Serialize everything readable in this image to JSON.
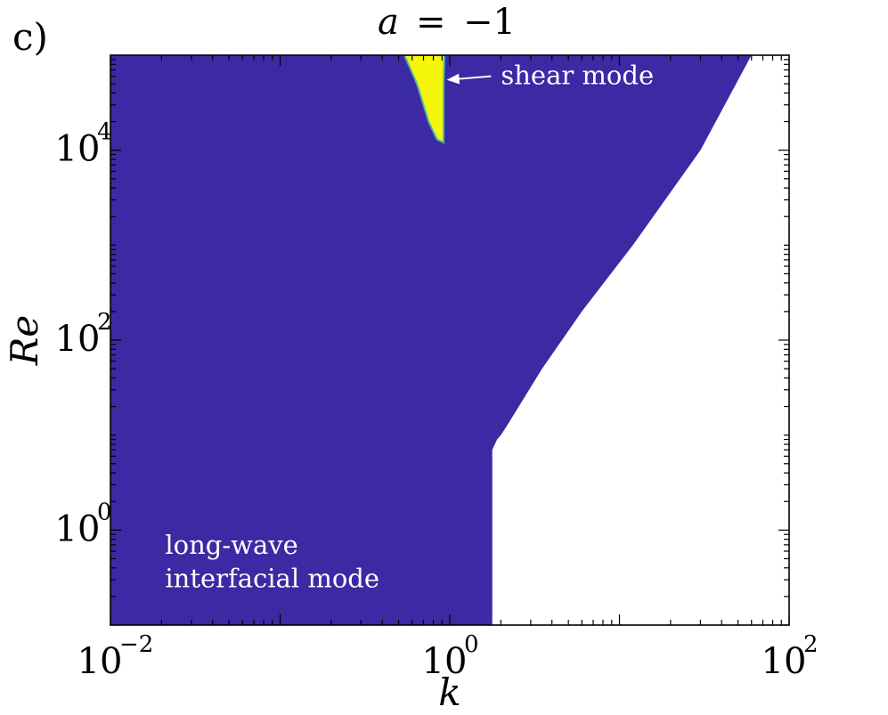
{
  "panel_label": "c)",
  "title": {
    "lhs": "a",
    "eq": "=",
    "rhs": "−1"
  },
  "chart_data": {
    "type": "heatmap",
    "xlabel": "k",
    "ylabel": "Re",
    "x_scale": "log",
    "y_scale": "log",
    "xlim": [
      0.01,
      100
    ],
    "ylim": [
      0.1,
      100000
    ],
    "grid": false,
    "x_ticks": [
      {
        "value": 0.01,
        "base": "10",
        "exp": "−2"
      },
      {
        "value": 1,
        "base": "10",
        "exp": "0"
      },
      {
        "value": 100,
        "base": "10",
        "exp": "2"
      }
    ],
    "y_ticks": [
      {
        "value": 1,
        "base": "10",
        "exp": "0"
      },
      {
        "value": 100,
        "base": "10",
        "exp": "2"
      },
      {
        "value": 10000,
        "base": "10",
        "exp": "4"
      }
    ],
    "colors": {
      "unstable_long_wave": "#3b2aa3",
      "shear_mode": "#f6f60b",
      "stable": "#ffffff",
      "annotation_text": "#ffffff"
    },
    "regions": [
      {
        "name": "long-wave interfacial mode region",
        "fill": "#3b2aa3",
        "boundary": [
          {
            "k": 0.01,
            "Re": 0.1
          },
          {
            "k": 1.78,
            "Re": 0.1
          },
          {
            "k": 1.78,
            "Re": 7
          },
          {
            "k": 1.9,
            "Re": 9
          },
          {
            "k": 2.0,
            "Re": 10
          },
          {
            "k": 2.2,
            "Re": 13
          },
          {
            "k": 3.5,
            "Re": 50
          },
          {
            "k": 6,
            "Re": 200
          },
          {
            "k": 12,
            "Re": 1000
          },
          {
            "k": 30,
            "Re": 10000
          },
          {
            "k": 60,
            "Re": 100000
          },
          {
            "k": 0.01,
            "Re": 100000
          }
        ]
      },
      {
        "name": "shear mode region",
        "fill": "#f6f60b",
        "boundary": [
          {
            "k": 0.54,
            "Re": 100000
          },
          {
            "k": 0.93,
            "Re": 100000
          },
          {
            "k": 0.92,
            "Re": 50000
          },
          {
            "k": 0.92,
            "Re": 20000
          },
          {
            "k": 0.92,
            "Re": 12000
          },
          {
            "k": 0.84,
            "Re": 13000
          },
          {
            "k": 0.75,
            "Re": 20000
          },
          {
            "k": 0.64,
            "Re": 50000
          }
        ]
      }
    ],
    "annotations": [
      {
        "id": "shear",
        "text": "shear mode",
        "at": {
          "k": 2.0,
          "Re": 60000
        },
        "arrow_from": {
          "k": 1.75,
          "Re": 60000
        },
        "arrow_to": {
          "k": 0.96,
          "Re": 55000
        }
      },
      {
        "id": "longwave_line1",
        "text": "long-wave",
        "at": {
          "k": 0.021,
          "Re": 0.56
        }
      },
      {
        "id": "longwave_line2",
        "text": "interfacial mode",
        "at": {
          "k": 0.021,
          "Re": 0.25
        }
      }
    ]
  }
}
